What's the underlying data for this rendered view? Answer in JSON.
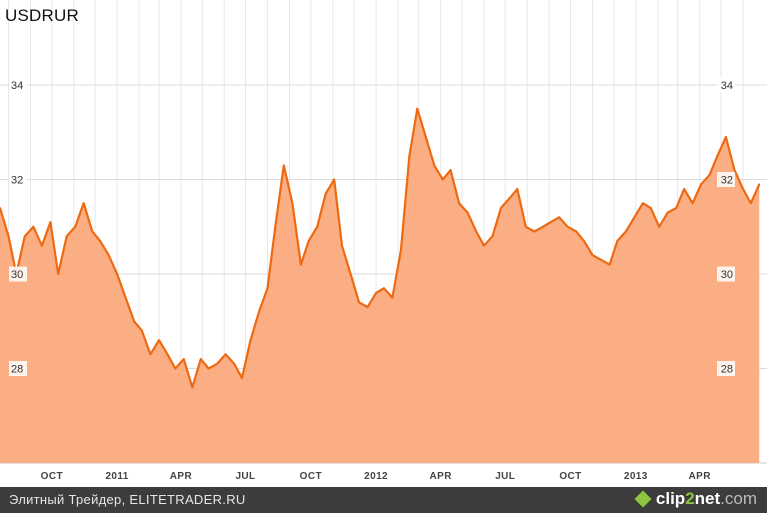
{
  "chart_data": {
    "type": "area",
    "title": "USDRUR",
    "xlabel": "",
    "ylabel": "",
    "x_tick_labels": [
      "OCT",
      "2011",
      "APR",
      "JUL",
      "OCT",
      "2012",
      "APR",
      "JUL",
      "OCT",
      "2013",
      "APR"
    ],
    "y_ticks": [
      28,
      30,
      32,
      34
    ],
    "ylim": [
      26,
      35.8
    ],
    "xlim": [
      "2010-07-20",
      "2013-06-25"
    ],
    "grid": true,
    "y_axis_labels": "both sides",
    "colors": {
      "line": "#ee6a12",
      "fill": "#fbad84"
    },
    "x": [
      "2010-07-20",
      "2010-08-01",
      "2010-08-12",
      "2010-08-24",
      "2010-09-05",
      "2010-09-17",
      "2010-09-29",
      "2010-10-10",
      "2010-10-22",
      "2010-11-03",
      "2010-11-15",
      "2010-11-27",
      "2010-12-08",
      "2010-12-20",
      "2011-01-01",
      "2011-01-13",
      "2011-01-25",
      "2011-02-05",
      "2011-02-17",
      "2011-03-01",
      "2011-03-13",
      "2011-03-24",
      "2011-04-05",
      "2011-04-17",
      "2011-04-29",
      "2011-05-10",
      "2011-05-22",
      "2011-06-03",
      "2011-06-15",
      "2011-06-26",
      "2011-07-08",
      "2011-07-20",
      "2011-08-01",
      "2011-08-12",
      "2011-08-24",
      "2011-09-05",
      "2011-09-17",
      "2011-09-28",
      "2011-10-10",
      "2011-10-22",
      "2011-11-03",
      "2011-11-14",
      "2011-11-26",
      "2011-12-08",
      "2011-12-20",
      "2012-01-01",
      "2012-01-12",
      "2012-01-24",
      "2012-02-05",
      "2012-02-17",
      "2012-02-28",
      "2012-03-11",
      "2012-03-23",
      "2012-04-04",
      "2012-04-15",
      "2012-04-27",
      "2012-05-09",
      "2012-05-21",
      "2012-06-01",
      "2012-06-13",
      "2012-06-25",
      "2012-07-07",
      "2012-07-18",
      "2012-07-30",
      "2012-08-11",
      "2012-08-23",
      "2012-09-03",
      "2012-09-15",
      "2012-09-27",
      "2012-10-09",
      "2012-10-20",
      "2012-11-01",
      "2012-11-13",
      "2012-11-25",
      "2012-12-06",
      "2012-12-18",
      "2012-12-30",
      "2013-01-11",
      "2013-01-22",
      "2013-02-03",
      "2013-02-15",
      "2013-02-27",
      "2013-03-10",
      "2013-03-22",
      "2013-04-03",
      "2013-04-15",
      "2013-04-26",
      "2013-05-08",
      "2013-05-20",
      "2013-06-01",
      "2013-06-12",
      "2013-06-24"
    ],
    "values": [
      31.4,
      30.8,
      30.0,
      30.8,
      31.0,
      30.6,
      31.1,
      30.0,
      30.8,
      31.0,
      31.5,
      30.9,
      30.7,
      30.4,
      30.0,
      29.5,
      29.0,
      28.8,
      28.3,
      28.6,
      28.3,
      28.0,
      28.2,
      27.6,
      28.2,
      28.0,
      28.1,
      28.3,
      28.1,
      27.8,
      28.6,
      29.2,
      29.7,
      31.0,
      32.3,
      31.5,
      30.2,
      30.7,
      31.0,
      31.7,
      32.0,
      30.6,
      30.0,
      29.4,
      29.3,
      29.6,
      29.7,
      29.5,
      30.5,
      32.5,
      33.5,
      32.9,
      32.3,
      32.0,
      32.2,
      31.5,
      31.3,
      30.9,
      30.6,
      30.8,
      31.4,
      31.6,
      31.8,
      31.0,
      30.9,
      31.0,
      31.1,
      31.2,
      31.0,
      30.9,
      30.7,
      30.4,
      30.3,
      30.2,
      30.7,
      30.9,
      31.2,
      31.5,
      31.4,
      31.0,
      31.3,
      31.4,
      31.8,
      31.5,
      31.9,
      32.1,
      32.5,
      32.9,
      32.2,
      31.8,
      31.5,
      31.9
    ]
  },
  "footer": {
    "caption": "Элитный Трейдер, ELITETRADER.RU",
    "brand_clip": "clip",
    "brand_two": "2",
    "brand_net": "net",
    "brand_tld": ".com"
  }
}
